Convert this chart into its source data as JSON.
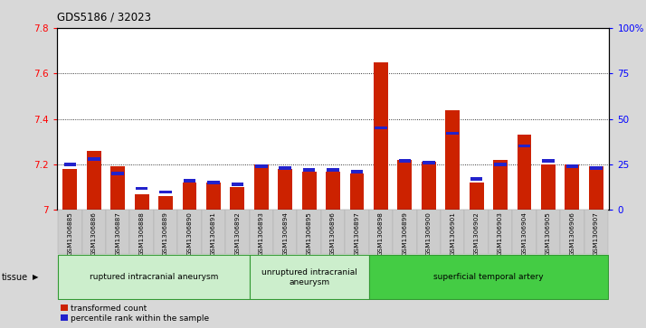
{
  "title": "GDS5186 / 32023",
  "samples": [
    "GSM1306885",
    "GSM1306886",
    "GSM1306887",
    "GSM1306888",
    "GSM1306889",
    "GSM1306890",
    "GSM1306891",
    "GSM1306892",
    "GSM1306893",
    "GSM1306894",
    "GSM1306895",
    "GSM1306896",
    "GSM1306897",
    "GSM1306898",
    "GSM1306899",
    "GSM1306900",
    "GSM1306901",
    "GSM1306902",
    "GSM1306903",
    "GSM1306904",
    "GSM1306905",
    "GSM1306906",
    "GSM1306907"
  ],
  "transformed_count": [
    7.18,
    7.26,
    7.19,
    7.07,
    7.06,
    7.12,
    7.12,
    7.1,
    7.2,
    7.18,
    7.17,
    7.17,
    7.16,
    7.65,
    7.22,
    7.21,
    7.44,
    7.12,
    7.22,
    7.33,
    7.2,
    7.2,
    7.19
  ],
  "percentile_rank": [
    25,
    28,
    20,
    12,
    10,
    16,
    15,
    14,
    24,
    23,
    22,
    22,
    21,
    45,
    27,
    26,
    42,
    17,
    25,
    35,
    27,
    24,
    23
  ],
  "ylim_left": [
    7.0,
    7.8
  ],
  "ylim_right": [
    0,
    100
  ],
  "yticks_left": [
    7.0,
    7.2,
    7.4,
    7.6,
    7.8
  ],
  "yticks_right": [
    0,
    25,
    50,
    75,
    100
  ],
  "ytick_labels_right": [
    "0",
    "25",
    "50",
    "75",
    "100%"
  ],
  "groups": [
    {
      "label": "ruptured intracranial aneurysm",
      "start": 0,
      "end": 8
    },
    {
      "label": "unruptured intracranial\naneurysm",
      "start": 8,
      "end": 13
    },
    {
      "label": "superficial temporal artery",
      "start": 13,
      "end": 23
    }
  ],
  "group_facecolors": [
    "#cceecc",
    "#cceecc",
    "#44cc44"
  ],
  "group_edgecolor": "#339933",
  "bar_color_red": "#cc2200",
  "bar_color_blue": "#2222cc",
  "background_color": "#d8d8d8",
  "plot_bg_color": "#ffffff",
  "tissue_label": "tissue",
  "legend_red": "transformed count",
  "legend_blue": "percentile rank within the sample"
}
